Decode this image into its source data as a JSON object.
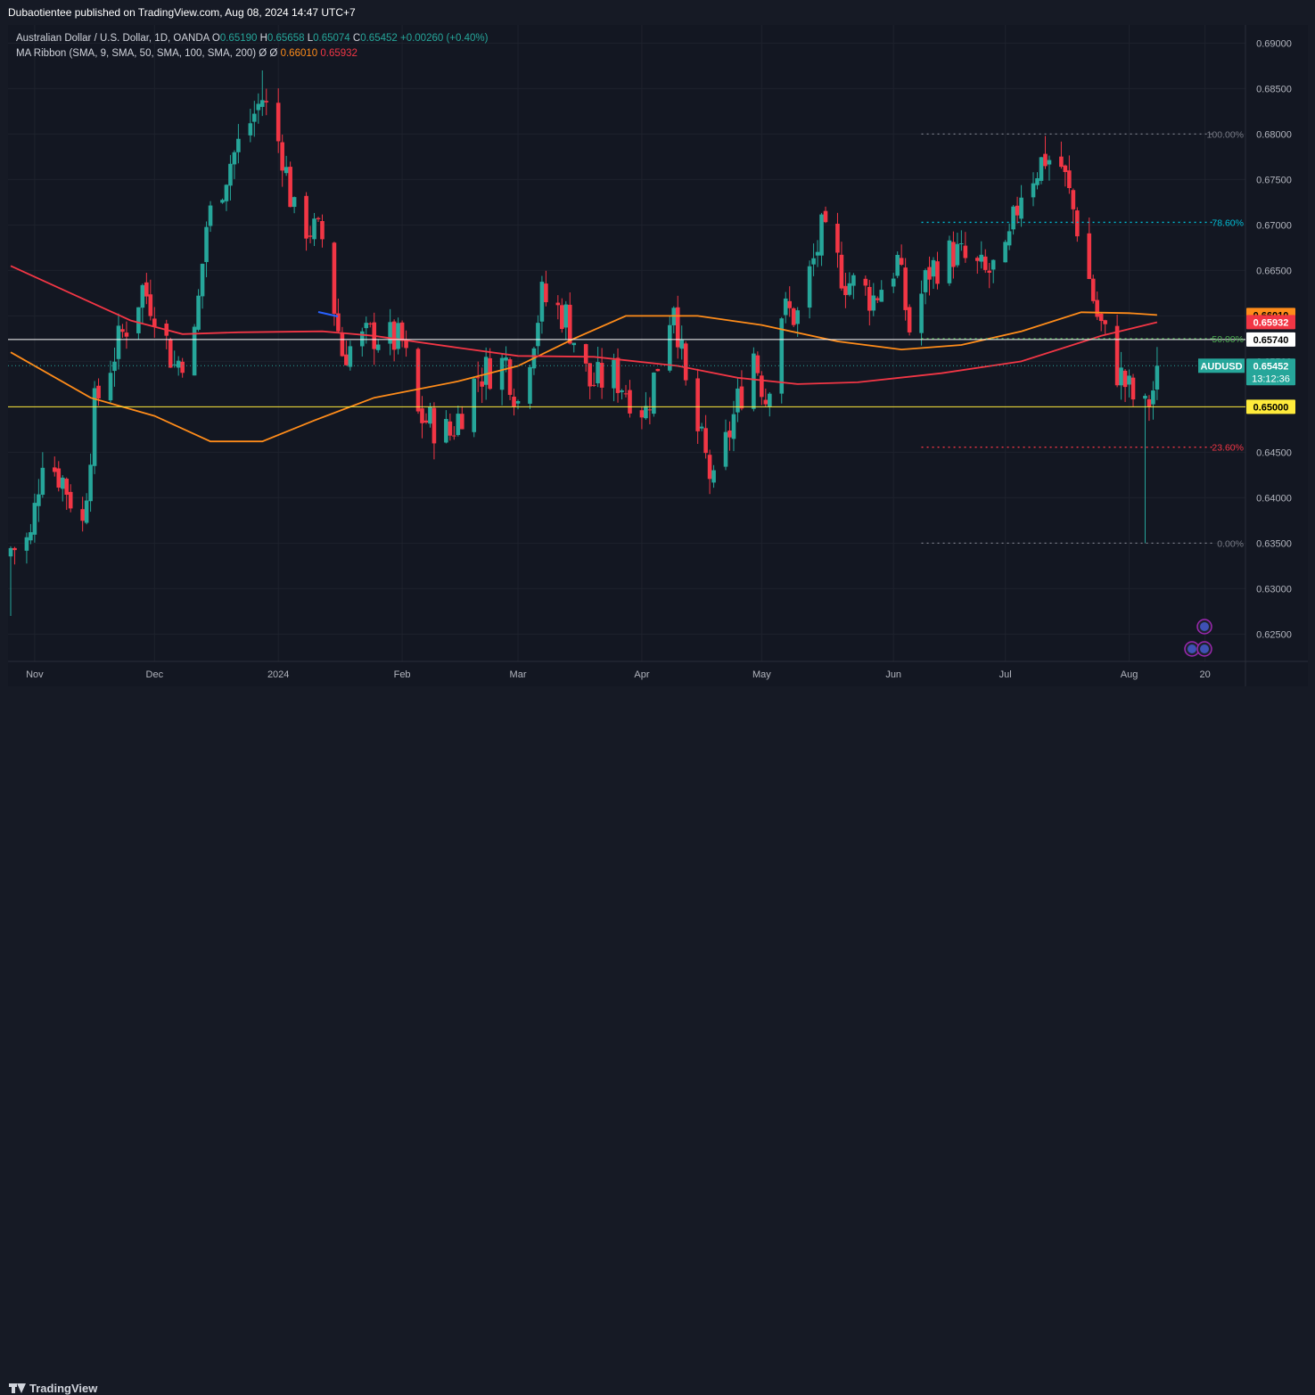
{
  "header": {
    "publisher_text": "Dubaotientee published on TradingView.com, Aug 08, 2024 14:47 UTC+7"
  },
  "legend": {
    "symbol": "Australian Dollar / U.S. Dollar, 1D, OANDA",
    "o_label": "O",
    "o_value": "0.65190",
    "h_label": "H",
    "h_value": "0.65658",
    "l_label": "L",
    "l_value": "0.65074",
    "c_label": "C",
    "c_value": "0.65452",
    "change": "+0.00260 (+0.40%)",
    "indicator": "MA Ribbon (SMA, 9, SMA, 50, SMA, 100, SMA, 200)",
    "indicator_icons": "Ø Ø",
    "ma_value_1": "0.66010",
    "ma_value_2": "0.65932"
  },
  "footer": {
    "brand": "TradingView"
  },
  "colors": {
    "up": "#26a69a",
    "down": "#f23645",
    "ma_orange": "#ff8c1a",
    "ma_red": "#f23645",
    "support": "#ffeb3b",
    "resistance": "#ffffff",
    "fib_100": "#787b86",
    "fib_786": "#00bcd4",
    "fib_50": "#4caf50",
    "fib_236": "#f23645",
    "fib_0": "#787b86",
    "badge_current": "#26a69a"
  },
  "chart_data": {
    "type": "candlestick",
    "ylim": [
      0.622,
      0.692
    ],
    "y_ticks": [
      "0.69000",
      "0.68500",
      "0.68000",
      "0.67500",
      "0.67000",
      "0.66500",
      "0.66000",
      "0.65500",
      "0.65000",
      "0.64500",
      "0.64000",
      "0.63500",
      "0.63000",
      "0.62500"
    ],
    "x_ticks": [
      {
        "label": "Nov",
        "date": "2023-11-01"
      },
      {
        "label": "Dec",
        "date": "2023-12-01"
      },
      {
        "label": "2024",
        "date": "2024-01-01"
      },
      {
        "label": "Feb",
        "date": "2024-02-01"
      },
      {
        "label": "Mar",
        "date": "2024-03-01"
      },
      {
        "label": "Apr",
        "date": "2024-04-01"
      },
      {
        "label": "May",
        "date": "2024-05-01"
      },
      {
        "label": "Jun",
        "date": "2024-06-03"
      },
      {
        "label": "Jul",
        "date": "2024-07-01"
      },
      {
        "label": "Aug",
        "date": "2024-08-01"
      },
      {
        "label": "20",
        "date": "2024-08-20"
      }
    ],
    "anchors": [
      {
        "date": "2023-10-27",
        "close": 0.6345
      },
      {
        "date": "2023-10-31",
        "close": 0.6355
      },
      {
        "date": "2023-11-03",
        "close": 0.645
      },
      {
        "date": "2023-11-08",
        "close": 0.642
      },
      {
        "date": "2023-11-13",
        "close": 0.637
      },
      {
        "date": "2023-11-16",
        "close": 0.65
      },
      {
        "date": "2023-11-21",
        "close": 0.656
      },
      {
        "date": "2023-11-28",
        "close": 0.663
      },
      {
        "date": "2023-12-01",
        "close": 0.661
      },
      {
        "date": "2023-12-06",
        "close": 0.6545
      },
      {
        "date": "2023-12-11",
        "close": 0.6575
      },
      {
        "date": "2023-12-14",
        "close": 0.67
      },
      {
        "date": "2023-12-20",
        "close": 0.677
      },
      {
        "date": "2023-12-28",
        "close": 0.684
      },
      {
        "date": "2024-01-02",
        "close": 0.678
      },
      {
        "date": "2024-01-05",
        "close": 0.671
      },
      {
        "date": "2024-01-12",
        "close": 0.6685
      },
      {
        "date": "2024-01-17",
        "close": 0.656
      },
      {
        "date": "2024-01-25",
        "close": 0.658
      },
      {
        "date": "2024-02-01",
        "close": 0.657
      },
      {
        "date": "2024-02-05",
        "close": 0.649
      },
      {
        "date": "2024-02-13",
        "close": 0.647
      },
      {
        "date": "2024-02-20",
        "close": 0.6535
      },
      {
        "date": "2024-02-27",
        "close": 0.655
      },
      {
        "date": "2024-03-01",
        "close": 0.6505
      },
      {
        "date": "2024-03-07",
        "close": 0.662
      },
      {
        "date": "2024-03-13",
        "close": 0.66
      },
      {
        "date": "2024-03-19",
        "close": 0.6525
      },
      {
        "date": "2024-03-25",
        "close": 0.6535
      },
      {
        "date": "2024-04-02",
        "close": 0.6495
      },
      {
        "date": "2024-04-09",
        "close": 0.662
      },
      {
        "date": "2024-04-12",
        "close": 0.652
      },
      {
        "date": "2024-04-19",
        "close": 0.641
      },
      {
        "date": "2024-04-25",
        "close": 0.6505
      },
      {
        "date": "2024-04-29",
        "close": 0.656
      },
      {
        "date": "2024-05-02",
        "close": 0.651
      },
      {
        "date": "2024-05-06",
        "close": 0.6605
      },
      {
        "date": "2024-05-10",
        "close": 0.66
      },
      {
        "date": "2024-05-16",
        "close": 0.669
      },
      {
        "date": "2024-05-22",
        "close": 0.664
      },
      {
        "date": "2024-05-29",
        "close": 0.662
      },
      {
        "date": "2024-06-04",
        "close": 0.666
      },
      {
        "date": "2024-06-07",
        "close": 0.6585
      },
      {
        "date": "2024-06-12",
        "close": 0.665
      },
      {
        "date": "2024-06-18",
        "close": 0.667
      },
      {
        "date": "2024-06-26",
        "close": 0.6645
      },
      {
        "date": "2024-07-01",
        "close": 0.666
      },
      {
        "date": "2024-07-05",
        "close": 0.674
      },
      {
        "date": "2024-07-11",
        "close": 0.6775
      },
      {
        "date": "2024-07-15",
        "close": 0.6765
      },
      {
        "date": "2024-07-19",
        "close": 0.67
      },
      {
        "date": "2024-07-24",
        "close": 0.66
      },
      {
        "date": "2024-07-29",
        "close": 0.654
      },
      {
        "date": "2024-08-02",
        "close": 0.651
      },
      {
        "date": "2024-08-05",
        "close": 0.6495
      },
      {
        "date": "2024-08-07",
        "close": 0.6519
      },
      {
        "date": "2024-08-08",
        "close": 0.65452
      }
    ],
    "last_candle": {
      "date": "2024-08-08",
      "open": 0.6519,
      "high": 0.65658,
      "low": 0.65074,
      "close": 0.65452
    },
    "extreme_wicks": [
      {
        "date": "2023-12-28",
        "high": 0.687
      },
      {
        "date": "2024-07-11",
        "high": 0.6798
      },
      {
        "date": "2024-08-05",
        "low": 0.635
      },
      {
        "date": "2023-10-26",
        "low": 0.627
      }
    ],
    "ma_series": [
      {
        "name": "0.66010",
        "color": "#ff8c1a",
        "points": [
          {
            "date": "2023-10-26",
            "value": 0.656
          },
          {
            "date": "2023-11-15",
            "value": 0.651
          },
          {
            "date": "2023-12-01",
            "value": 0.649
          },
          {
            "date": "2023-12-15",
            "value": 0.6462
          },
          {
            "date": "2023-12-28",
            "value": 0.6462
          },
          {
            "date": "2024-01-10",
            "value": 0.6485
          },
          {
            "date": "2024-01-25",
            "value": 0.651
          },
          {
            "date": "2024-02-15",
            "value": 0.6528
          },
          {
            "date": "2024-03-01",
            "value": 0.6545
          },
          {
            "date": "2024-03-15",
            "value": 0.6575
          },
          {
            "date": "2024-03-28",
            "value": 0.66
          },
          {
            "date": "2024-04-15",
            "value": 0.66
          },
          {
            "date": "2024-05-01",
            "value": 0.659
          },
          {
            "date": "2024-05-20",
            "value": 0.6572
          },
          {
            "date": "2024-06-05",
            "value": 0.6563
          },
          {
            "date": "2024-06-20",
            "value": 0.6568
          },
          {
            "date": "2024-07-05",
            "value": 0.6583
          },
          {
            "date": "2024-07-20",
            "value": 0.6604
          },
          {
            "date": "2024-08-01",
            "value": 0.6603
          },
          {
            "date": "2024-08-08",
            "value": 0.6601
          }
        ]
      },
      {
        "name": "0.65932",
        "color": "#f23645",
        "points": [
          {
            "date": "2023-10-26",
            "value": 0.6655
          },
          {
            "date": "2023-11-10",
            "value": 0.6625
          },
          {
            "date": "2023-11-25",
            "value": 0.6595
          },
          {
            "date": "2023-12-08",
            "value": 0.658
          },
          {
            "date": "2023-12-22",
            "value": 0.6582
          },
          {
            "date": "2024-01-12",
            "value": 0.6583
          },
          {
            "date": "2024-01-25",
            "value": 0.6578
          },
          {
            "date": "2024-02-15",
            "value": 0.6565
          },
          {
            "date": "2024-03-01",
            "value": 0.6556
          },
          {
            "date": "2024-03-20",
            "value": 0.6555
          },
          {
            "date": "2024-04-10",
            "value": 0.6545
          },
          {
            "date": "2024-04-25",
            "value": 0.6532
          },
          {
            "date": "2024-05-10",
            "value": 0.6525
          },
          {
            "date": "2024-05-25",
            "value": 0.6527
          },
          {
            "date": "2024-06-15",
            "value": 0.6537
          },
          {
            "date": "2024-07-05",
            "value": 0.655
          },
          {
            "date": "2024-07-25",
            "value": 0.6578
          },
          {
            "date": "2024-08-08",
            "value": 0.6593
          }
        ]
      }
    ],
    "horizontal_lines": [
      {
        "name": "resistance",
        "value": 0.6574,
        "color": "#ffffff"
      },
      {
        "name": "support",
        "value": 0.65,
        "color": "#ffeb3b"
      }
    ],
    "fib_levels": [
      {
        "label": "100.00%",
        "value": 0.68,
        "color": "#787b86"
      },
      {
        "label": "78.60%",
        "value": 0.67029,
        "color": "#00bcd4"
      },
      {
        "label": "50.00%",
        "value": 0.6575,
        "color": "#4caf50"
      },
      {
        "label": "23.60%",
        "value": 0.64556,
        "color": "#f23645"
      },
      {
        "label": "0.00%",
        "value": 0.635,
        "color": "#787b86"
      }
    ],
    "fib_start_date": "2024-06-10",
    "price_badges": [
      {
        "text": "0.66010",
        "value": 0.6601,
        "bg": "#ff8c1a",
        "fg": "#000000"
      },
      {
        "text": "0.65932",
        "value": 0.65932,
        "bg": "#f23645",
        "fg": "#ffffff"
      },
      {
        "text": "0.65740",
        "value": 0.6574,
        "bg": "#ffffff",
        "fg": "#000000"
      },
      {
        "text": "0.65000",
        "value": 0.65,
        "bg": "#ffeb3b",
        "fg": "#000000"
      }
    ],
    "current_badge": {
      "symbol": "AUDUSD",
      "price": "0.65452",
      "countdown": "13:12:36",
      "value": 0.65452
    },
    "start_date": "2023-10-26",
    "end_date": "2024-08-08",
    "x_end_date": "2024-08-29"
  }
}
